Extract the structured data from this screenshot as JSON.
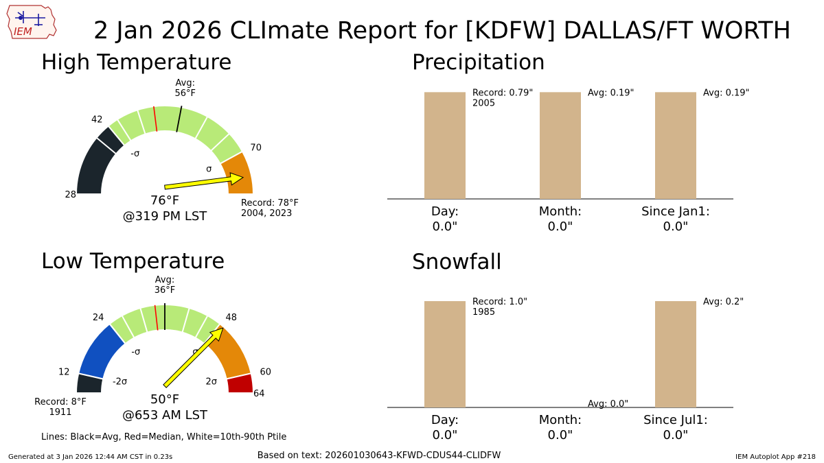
{
  "title": "2 Jan 2026 CLImate Report for [KDFW] DALLAS/FT WORTH",
  "logo_text": "IEM",
  "footer": {
    "left": "Generated at 3 Jan 2026 12:44 AM CST in 0.23s",
    "center": "Based on text: 202601030643-KFWD-CDUS44-CLIDFW",
    "right": "IEM Autoplot App #218",
    "legend_note": "Lines: Black=Avg, Red=Median, White=10th-90th Ptile"
  },
  "colors": {
    "below_2sigma": "#1b252c",
    "below_1sigma": "#1050c0",
    "normal": "#b8ea78",
    "above_1sigma": "#e48808",
    "above_2sigma": "#c00000",
    "bar": "#d2b48c",
    "needle": "#ffff00",
    "median_line": "#ff0000"
  },
  "chart_data": [
    {
      "type": "gauge",
      "title": "High Temperature",
      "range": [
        28,
        78
      ],
      "observed": 76,
      "observed_label": "76°F",
      "time_label": "@319 PM LST",
      "avg": 56,
      "avg_label": "Avg:\n56°F",
      "median": 51,
      "ptiles": [
        39,
        44,
        48,
        61,
        66
      ],
      "ticks": [
        {
          "value": 28,
          "label": "28"
        },
        {
          "value": 42,
          "label": "42"
        },
        {
          "value": 70,
          "label": "70"
        }
      ],
      "sigma_marks": [
        {
          "value": 42,
          "label": "-σ"
        },
        {
          "value": 70,
          "label": "σ"
        }
      ],
      "bands": [
        {
          "from": 28,
          "to": 42,
          "color": "below_2sigma"
        },
        {
          "from": 42,
          "to": 70,
          "color": "normal"
        },
        {
          "from": 70,
          "to": 78,
          "color": "above_1sigma"
        }
      ],
      "record_label": "Record: 78°F\n2004, 2023"
    },
    {
      "type": "gauge",
      "title": "Low Temperature",
      "range": [
        8,
        64
      ],
      "observed": 50,
      "observed_label": "50°F",
      "time_label": "@653 AM LST",
      "avg": 36,
      "avg_label": "Avg:\n36°F",
      "median": 34,
      "ptiles": [
        24,
        27,
        31,
        41,
        45
      ],
      "ticks": [
        {
          "value": 12,
          "label": "12"
        },
        {
          "value": 24,
          "label": "24"
        },
        {
          "value": 48,
          "label": "48"
        },
        {
          "value": 60,
          "label": "60"
        },
        {
          "value": 64,
          "label": "64"
        }
      ],
      "sigma_marks": [
        {
          "value": 24,
          "label": "-σ"
        },
        {
          "value": 12,
          "label": "-2σ"
        },
        {
          "value": 48,
          "label": "σ"
        },
        {
          "value": 60,
          "label": "2σ"
        }
      ],
      "bands": [
        {
          "from": 8,
          "to": 12,
          "color": "below_2sigma"
        },
        {
          "from": 12,
          "to": 24,
          "color": "below_1sigma"
        },
        {
          "from": 24,
          "to": 48,
          "color": "normal"
        },
        {
          "from": 48,
          "to": 60,
          "color": "above_1sigma"
        },
        {
          "from": 60,
          "to": 64,
          "color": "above_2sigma"
        }
      ],
      "record_label": "Record: 8°F\n1911"
    },
    {
      "type": "bar",
      "title": "Precipitation",
      "ylim": [
        0,
        1
      ],
      "categories": [
        "Day:\n0.0\"",
        "Month:\n0.0\"",
        "Since Jan1:\n0.0\""
      ],
      "values": [
        0.79,
        0.79,
        0.79
      ],
      "observed": [
        0.0,
        0.0,
        0.0
      ],
      "annotations": [
        "Record: 0.79\"\n2005",
        "Avg: 0.19\"",
        "Avg: 0.19\""
      ]
    },
    {
      "type": "bar",
      "title": "Snowfall",
      "ylim": [
        0,
        1
      ],
      "categories": [
        "Day:\n0.0\"",
        "Month:\n0.0\"",
        "Since Jul1:\n0.0\""
      ],
      "values": [
        1.0,
        0.0,
        1.0
      ],
      "observed": [
        0.0,
        0.0,
        0.0
      ],
      "annotations": [
        "Record: 1.0\"\n1985",
        "Avg: 0.0\"",
        "Avg: 0.2\""
      ]
    }
  ]
}
